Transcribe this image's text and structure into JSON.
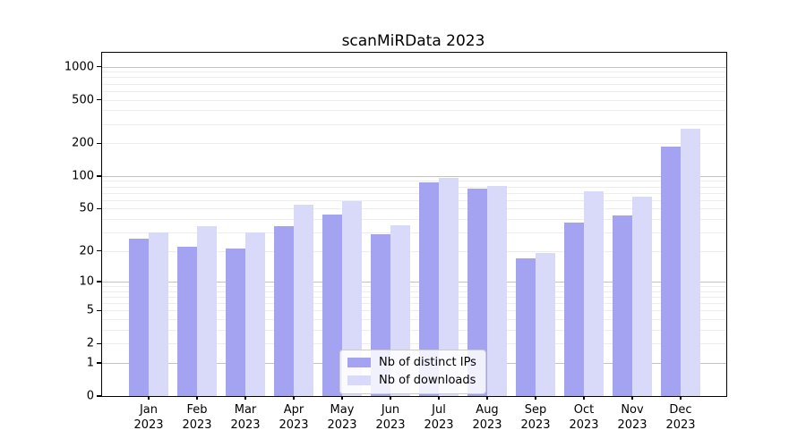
{
  "title": "scanMiRData 2023",
  "chart_data": {
    "type": "bar",
    "title": "scanMiRData 2023",
    "categories": [
      "Jan",
      "Feb",
      "Mar",
      "Apr",
      "May",
      "Jun",
      "Jul",
      "Aug",
      "Sep",
      "Oct",
      "Nov",
      "Dec"
    ],
    "x_tick_year": "2023",
    "series": [
      {
        "name": "Nb of distinct IPs",
        "color": "#a3a3f2",
        "values": [
          26,
          22,
          21,
          34,
          44,
          29,
          88,
          77,
          17,
          37,
          43,
          185
        ]
      },
      {
        "name": "Nb of downloads",
        "color": "#d9d9fa",
        "values": [
          30,
          34,
          30,
          54,
          59,
          35,
          97,
          81,
          19,
          72,
          64,
          270
        ]
      }
    ],
    "y_ticks": [
      0,
      1,
      2,
      5,
      10,
      20,
      50,
      100,
      200,
      500,
      1000
    ],
    "scale": "log1p",
    "ylim": [
      0,
      1340
    ],
    "grid": "horizontal",
    "legend_position": "bottom-center",
    "axis_color": "#000000",
    "grid_major_color": "#c2c2c2",
    "grid_minor_color": "#ededed"
  }
}
